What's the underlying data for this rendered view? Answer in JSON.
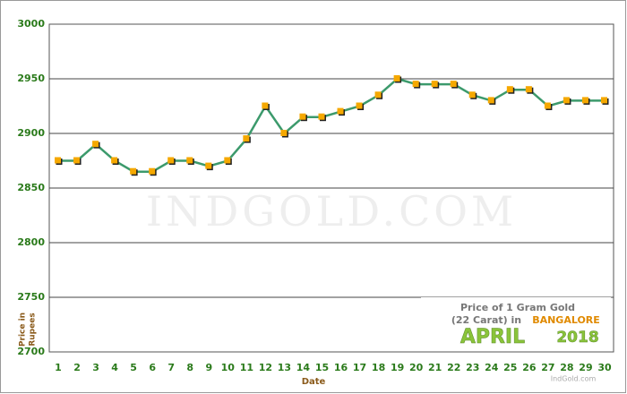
{
  "chart_data": {
    "type": "line",
    "categories": [
      "1",
      "2",
      "3",
      "4",
      "5",
      "6",
      "7",
      "8",
      "9",
      "10",
      "11",
      "12",
      "13",
      "14",
      "15",
      "16",
      "17",
      "18",
      "19",
      "20",
      "21",
      "22",
      "23",
      "24",
      "25",
      "26",
      "27",
      "28",
      "29",
      "30"
    ],
    "series": [
      {
        "color": "#3c9a6c",
        "marker_color": "#f5a800",
        "values": [
          2875,
          2875,
          2890,
          2875,
          2865,
          2865,
          2875,
          2875,
          2870,
          2875,
          2895,
          2925,
          2900,
          2915,
          2915,
          2920,
          2925,
          2935,
          2950,
          2945,
          2945,
          2945,
          2935,
          2930,
          2940,
          2940,
          2925,
          2930,
          2930,
          2930
        ]
      }
    ],
    "ylim": [
      2700,
      3000
    ],
    "yticks": [
      2700,
      2750,
      2800,
      2850,
      2900,
      2950,
      3000
    ],
    "grid": true,
    "xlabel": "Date",
    "ylabel_line1": "Price in",
    "ylabel_line2": "Rupees",
    "watermark": "IndGold.com",
    "legend_line1": "Price of 1 Gram Gold",
    "legend_line2": "(22 Carat) in",
    "legend_city": "BANGALORE",
    "legend_month": "APRIL",
    "legend_year": "2018",
    "legend_site": "IndGold.com"
  }
}
